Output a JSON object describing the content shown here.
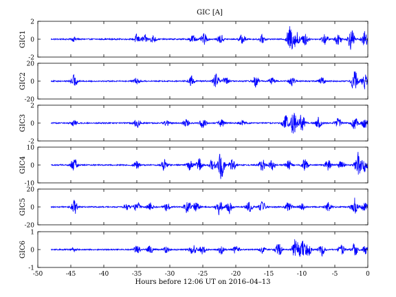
{
  "chart_data": {
    "type": "line",
    "title": "GIC [A]",
    "xlabel": "Hours before  12:06 UT on 2016–04–13",
    "xlim": [
      -50,
      0
    ],
    "x_ticks": [
      "-50",
      "-45",
      "-40",
      "-35",
      "-30",
      "-25",
      "-20",
      "-15",
      "-10",
      "-5",
      "0"
    ],
    "grid": false,
    "line_color": "#0000ff",
    "data_x_range": [
      -48,
      0
    ],
    "panels": [
      {
        "ylabel": "GIC1",
        "ylim": [
          -2,
          2
        ],
        "y_ticks": [
          "2",
          "0",
          "-2"
        ],
        "bursts": [
          [
            -44.5,
            0.3
          ],
          [
            -35,
            0.6
          ],
          [
            -33.8,
            0.5
          ],
          [
            -32.5,
            0.5
          ],
          [
            -26.5,
            0.6
          ],
          [
            -24.8,
            0.7
          ],
          [
            -22.3,
            0.6
          ],
          [
            -19,
            0.6
          ],
          [
            -16,
            0.5
          ],
          [
            -11.8,
            1.9
          ],
          [
            -10.8,
            1.2
          ],
          [
            -9.5,
            0.9
          ],
          [
            -6.5,
            0.7
          ],
          [
            -4.5,
            0.8
          ],
          [
            -2.5,
            1.4
          ],
          [
            -0.5,
            1.1
          ]
        ]
      },
      {
        "ylabel": "GIC2",
        "ylim": [
          -20,
          20
        ],
        "y_ticks": [
          "20",
          "0",
          "-20"
        ],
        "bursts": [
          [
            -44.5,
            8
          ],
          [
            -35,
            4
          ],
          [
            -26.8,
            7
          ],
          [
            -23,
            9
          ],
          [
            -21.5,
            6
          ],
          [
            -17,
            7
          ],
          [
            -14.5,
            5
          ],
          [
            -11.5,
            6
          ],
          [
            -7,
            5
          ],
          [
            -2,
            14
          ],
          [
            -0.5,
            10
          ]
        ]
      },
      {
        "ylabel": "GIC3",
        "ylim": [
          -2,
          2
        ],
        "y_ticks": [
          "2",
          "0",
          "-2"
        ],
        "bursts": [
          [
            -44.5,
            0.4
          ],
          [
            -35,
            0.6
          ],
          [
            -30.5,
            0.4
          ],
          [
            -27.5,
            0.5
          ],
          [
            -25,
            0.6
          ],
          [
            -22.2,
            0.5
          ],
          [
            -19,
            0.3
          ],
          [
            -12.5,
            1.0
          ],
          [
            -11.2,
            1.8
          ],
          [
            -10,
            1.2
          ],
          [
            -7.5,
            0.8
          ],
          [
            -4.5,
            0.7
          ],
          [
            -2,
            0.8
          ],
          [
            -0.5,
            0.7
          ]
        ]
      },
      {
        "ylabel": "GIC4",
        "ylim": [
          -10,
          10
        ],
        "y_ticks": [
          "10",
          "0",
          "-10"
        ],
        "bursts": [
          [
            -44.5,
            5
          ],
          [
            -35,
            3
          ],
          [
            -30.8,
            3.5
          ],
          [
            -27,
            3.5
          ],
          [
            -25.5,
            4
          ],
          [
            -23.5,
            4
          ],
          [
            -22.2,
            9
          ],
          [
            -20.5,
            4
          ],
          [
            -16,
            4
          ],
          [
            -14.5,
            3
          ],
          [
            -12,
            3.5
          ],
          [
            -9.5,
            4
          ],
          [
            -6,
            3.5
          ],
          [
            -4,
            3
          ],
          [
            -1.5,
            8
          ],
          [
            -0.5,
            4
          ]
        ]
      },
      {
        "ylabel": "GIC5",
        "ylim": [
          -20,
          20
        ],
        "y_ticks": [
          "20",
          "0",
          "-20"
        ],
        "bursts": [
          [
            -44.5,
            10
          ],
          [
            -36.5,
            4
          ],
          [
            -35,
            7
          ],
          [
            -33,
            5
          ],
          [
            -30.5,
            5
          ],
          [
            -27.3,
            9
          ],
          [
            -26,
            7
          ],
          [
            -22.5,
            12
          ],
          [
            -21,
            8
          ],
          [
            -18,
            7
          ],
          [
            -16,
            8
          ],
          [
            -12,
            6
          ],
          [
            -10,
            5
          ],
          [
            -6,
            6
          ],
          [
            -2,
            14
          ],
          [
            -0.5,
            6
          ]
        ]
      },
      {
        "ylabel": "GIC6",
        "ylim": [
          -1,
          1
        ],
        "y_ticks": [
          "1",
          "0",
          "-1"
        ],
        "bursts": [
          [
            -44.5,
            0.1
          ],
          [
            -35,
            0.3
          ],
          [
            -33,
            0.3
          ],
          [
            -30.5,
            0.2
          ],
          [
            -26.5,
            0.35
          ],
          [
            -25,
            0.3
          ],
          [
            -22.2,
            0.3
          ],
          [
            -20,
            0.25
          ],
          [
            -16,
            0.25
          ],
          [
            -13.5,
            0.5
          ],
          [
            -11,
            0.75
          ],
          [
            -10,
            0.6
          ],
          [
            -9,
            0.5
          ],
          [
            -7,
            0.4
          ],
          [
            -4,
            0.35
          ],
          [
            -2,
            0.4
          ],
          [
            -0.3,
            0.3
          ]
        ]
      }
    ]
  }
}
